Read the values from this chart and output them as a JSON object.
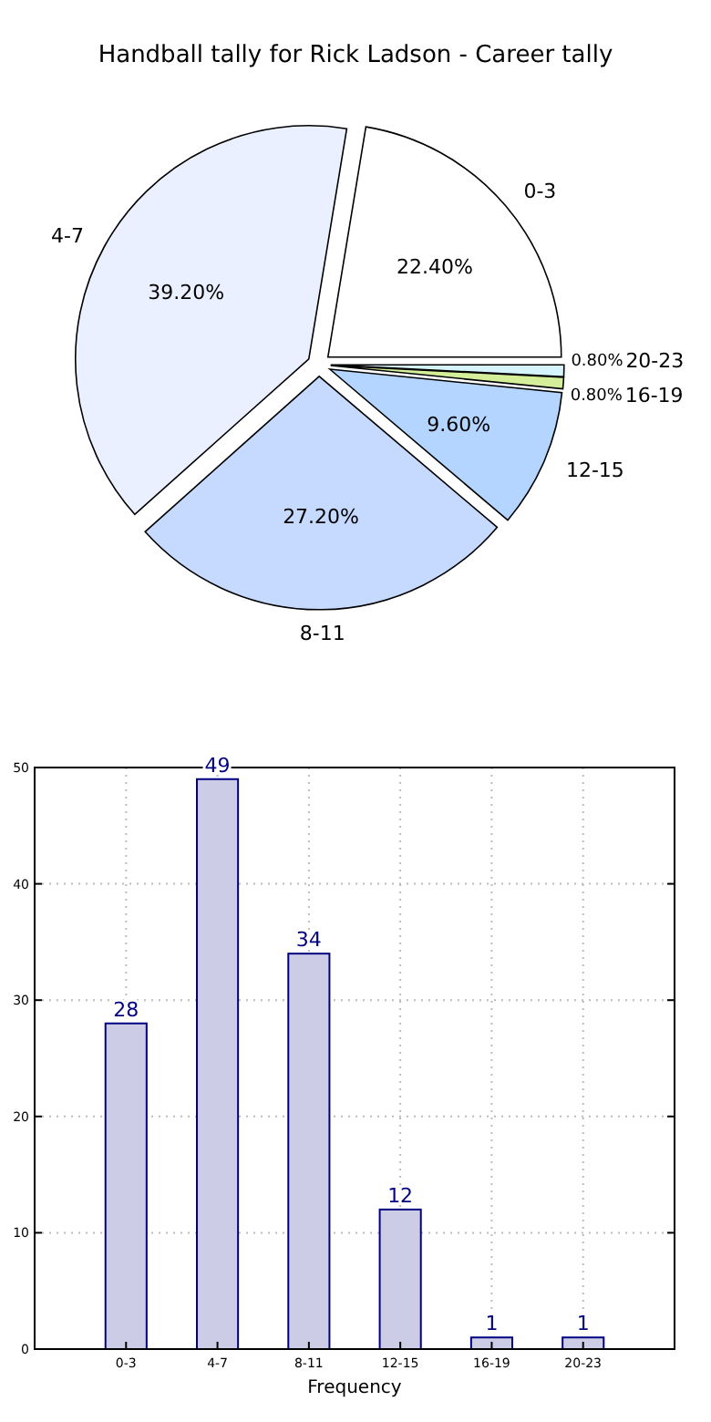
{
  "chart_data": [
    {
      "type": "pie",
      "title": "Handball tally for Rick Ladson - Career tally",
      "categories": [
        "0-3",
        "4-7",
        "8-11",
        "12-15",
        "16-19",
        "20-23"
      ],
      "values": [
        22.4,
        39.2,
        27.2,
        9.6,
        0.8,
        0.8
      ],
      "value_labels": [
        "22.40%",
        "39.20%",
        "27.20%",
        "9.60%",
        "0.80%",
        "0.80%"
      ],
      "colors": [
        "#ffffff",
        "#eaf0ff",
        "#c6d9ff",
        "#b3d5ff",
        "#d4ee9a",
        "#d6f4fb"
      ]
    },
    {
      "type": "bar",
      "xlabel": "Frequency",
      "categories": [
        "0-3",
        "4-7",
        "8-11",
        "12-15",
        "16-19",
        "20-23"
      ],
      "values": [
        28,
        49,
        34,
        12,
        1,
        1
      ],
      "color": "#ccccE6",
      "ylim": [
        0,
        50
      ],
      "yticks": [
        0,
        10,
        20,
        30,
        40,
        50
      ],
      "grid": true,
      "data_labels": true
    }
  ]
}
